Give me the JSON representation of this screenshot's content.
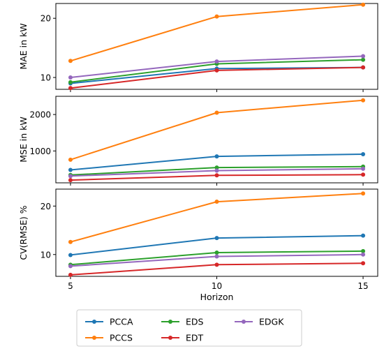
{
  "chart_data": [
    {
      "type": "line",
      "title": "",
      "xlabel": "",
      "ylabel": "MAE in kW",
      "x": [
        5,
        10,
        15
      ],
      "xlim": [
        4.5,
        15.5
      ],
      "ylim": [
        8,
        22.5
      ],
      "yticks": [
        10,
        20
      ],
      "series": [
        {
          "name": "PCCA",
          "color": "#1f77b4",
          "values": [
            9.0,
            11.5,
            11.7
          ]
        },
        {
          "name": "PCCS",
          "color": "#ff7f0e",
          "values": [
            12.8,
            20.3,
            22.3
          ]
        },
        {
          "name": "EDS",
          "color": "#2ca02c",
          "values": [
            9.2,
            12.3,
            13.0
          ]
        },
        {
          "name": "EDT",
          "color": "#d62728",
          "values": [
            8.2,
            11.2,
            11.7
          ]
        },
        {
          "name": "EDGK",
          "color": "#9467bd",
          "values": [
            10.0,
            12.7,
            13.6
          ]
        }
      ]
    },
    {
      "type": "line",
      "title": "",
      "xlabel": "",
      "ylabel": "MSE in kW",
      "x": [
        5,
        10,
        15
      ],
      "xlim": [
        4.5,
        15.5
      ],
      "ylim": [
        125,
        2500
      ],
      "yticks": [
        1000,
        2000
      ],
      "series": [
        {
          "name": "PCCA",
          "color": "#1f77b4",
          "values": [
            480,
            850,
            910
          ]
        },
        {
          "name": "PCCS",
          "color": "#ff7f0e",
          "values": [
            760,
            2050,
            2390
          ]
        },
        {
          "name": "EDS",
          "color": "#2ca02c",
          "values": [
            340,
            545,
            570
          ]
        },
        {
          "name": "EDT",
          "color": "#d62728",
          "values": [
            200,
            330,
            350
          ]
        },
        {
          "name": "EDGK",
          "color": "#9467bd",
          "values": [
            310,
            460,
            510
          ]
        }
      ]
    },
    {
      "type": "line",
      "title": "",
      "xlabel": "Horizon",
      "ylabel": "CV(RMSE) %",
      "x": [
        5,
        10,
        15
      ],
      "xlim": [
        4.5,
        15.5
      ],
      "ylim": [
        5.5,
        23.5
      ],
      "yticks": [
        10,
        20
      ],
      "xticks": [
        5,
        10,
        15
      ],
      "series": [
        {
          "name": "PCCA",
          "color": "#1f77b4",
          "values": [
            9.9,
            13.4,
            13.9
          ]
        },
        {
          "name": "PCCS",
          "color": "#ff7f0e",
          "values": [
            12.6,
            20.9,
            22.6
          ]
        },
        {
          "name": "EDS",
          "color": "#2ca02c",
          "values": [
            7.9,
            10.4,
            10.7
          ]
        },
        {
          "name": "EDT",
          "color": "#d62728",
          "values": [
            5.8,
            7.9,
            8.2
          ]
        },
        {
          "name": "EDGK",
          "color": "#9467bd",
          "values": [
            7.6,
            9.6,
            10.0
          ]
        }
      ]
    }
  ],
  "legend": {
    "placement": "bottom-center",
    "entries": [
      {
        "name": "PCCA",
        "color": "#1f77b4"
      },
      {
        "name": "PCCS",
        "color": "#ff7f0e"
      },
      {
        "name": "EDS",
        "color": "#2ca02c"
      },
      {
        "name": "EDT",
        "color": "#d62728"
      },
      {
        "name": "EDGK",
        "color": "#9467bd"
      }
    ]
  }
}
